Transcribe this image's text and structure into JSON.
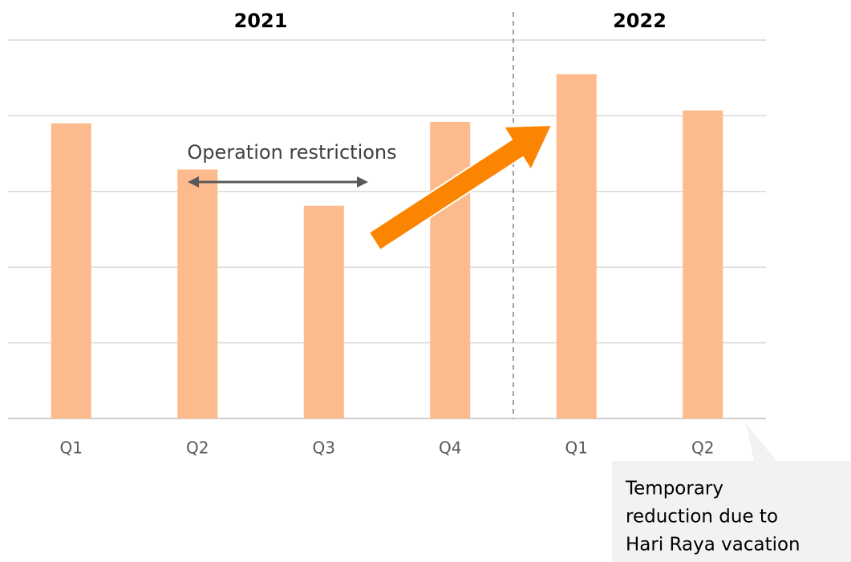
{
  "chart_data": {
    "type": "bar",
    "categories": [
      "Q1",
      "Q2",
      "Q3",
      "Q4",
      "Q1",
      "Q2"
    ],
    "groups": [
      {
        "label": "2021",
        "categories": [
          0,
          1,
          2,
          3
        ]
      },
      {
        "label": "2022",
        "categories": [
          4,
          5
        ]
      }
    ],
    "values": [
      3.9,
      3.29,
      2.81,
      3.92,
      4.55,
      4.07
    ],
    "color": "#fdba8c",
    "ylim": [
      0,
      5
    ],
    "yticks": [
      0,
      1,
      2,
      3,
      4,
      5
    ],
    "grid": true,
    "annotations": [
      {
        "text": "Operation restrictions"
      },
      {
        "lines": [
          "Temporary",
          "reduction due to",
          "Hari Raya vacation"
        ]
      }
    ]
  }
}
